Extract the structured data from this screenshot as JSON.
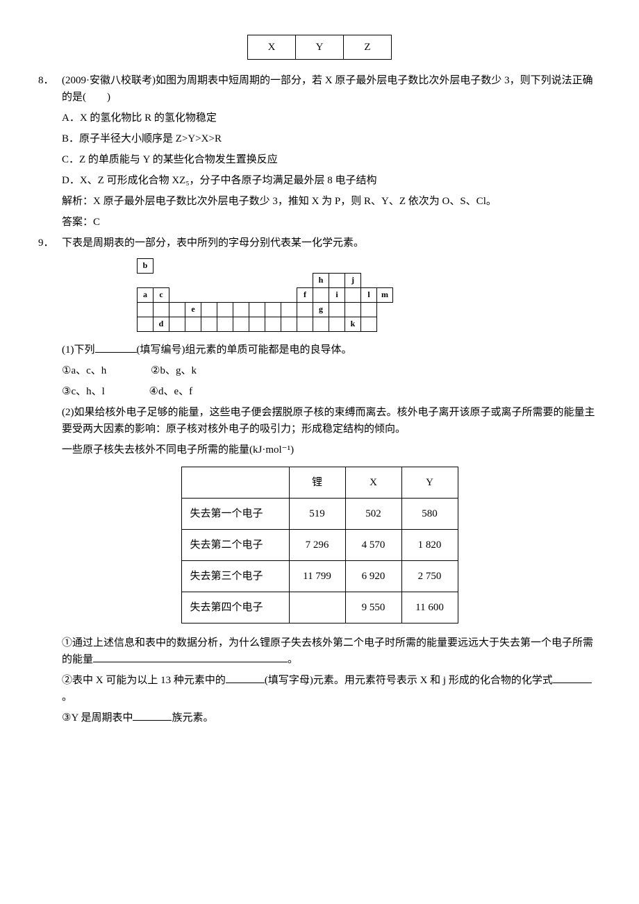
{
  "top_table": {
    "cells": [
      "X",
      "Y",
      "Z"
    ]
  },
  "q8": {
    "num": "8．",
    "stem": "(2009·安徽八校联考)如图为周期表中短周期的一部分，若 X 原子最外层电子数比次外层电子数少 3，则下列说法正确的是(　　)",
    "optA": "A．X 的氢化物比 R 的氢化物稳定",
    "optB": "B．原子半径大小顺序是 Z>Y>X>R",
    "optC": "C．Z 的单质能与 Y 的某些化合物发生置换反应",
    "optD": "D．X、Z 可形成化合物 XZ₅，分子中各原子均满足最外层 8 电子结构",
    "analysis": "解析：X 原子最外层电子数比次外层电子数少 3，推知 X 为 P，则 R、Y、Z 依次为 O、S、Cl。",
    "answer": "答案：C"
  },
  "q9": {
    "num": "9．",
    "stem": "下表是周期表的一部分，表中所列的字母分别代表某一化学元素。",
    "sub1_text_a": "(1)下列",
    "sub1_text_b": "(填写编号)组元素的单质可能都是电的良导体。",
    "opt1": "①a、c、h",
    "opt2": "②b、g、k",
    "opt3": "③c、h、l",
    "opt4": "④d、e、f",
    "sub2_text": "(2)如果给核外电子足够的能量，这些电子便会摆脱原子核的束缚而离去。核外电子离开该原子或离子所需要的能量主要受两大因素的影响：原子核对核外电子的吸引力；形成稳定结构的倾向。",
    "energy_caption": "一些原子核失去核外不同电子所需的能量(kJ·mol⁻¹)",
    "energy_headers": [
      "",
      "锂",
      "X",
      "Y"
    ],
    "energy_rows": [
      [
        "失去第一个电子",
        "519",
        "502",
        "580"
      ],
      [
        "失去第二个电子",
        "7 296",
        "4 570",
        "1 820"
      ],
      [
        "失去第三个电子",
        "11 799",
        "6 920",
        "2 750"
      ],
      [
        "失去第四个电子",
        "",
        "9 550",
        "11 600"
      ]
    ],
    "sub2_1a": "①通过上述信息和表中的数据分析，为什么锂原子失去核外第二个电子时所需的能量要远远大于失去第一个电子所需的能量",
    "sub2_1b": "。",
    "sub2_2a": "②表中 X 可能为以上 13 种元素中的",
    "sub2_2b": "(填写字母)元素。用元素符号表示 X 和 j 形成的化合物的化学式",
    "sub2_2c": "。",
    "sub2_3a": "③Y 是周期表中",
    "sub2_3b": "族元素。"
  },
  "periodic": {
    "r1": {
      "c1": "b"
    },
    "r2": {
      "c12": "h",
      "c14": "j"
    },
    "r3": {
      "c1": "a",
      "c2": "c",
      "c11": "f",
      "c13": "i",
      "c15": "l",
      "c16": "m"
    },
    "r4": {
      "c4": "e",
      "c12": "g"
    },
    "r5": {
      "c2": "d",
      "c14": "k"
    }
  }
}
